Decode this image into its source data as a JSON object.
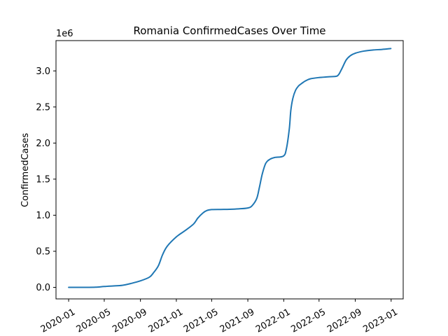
{
  "chart_data": {
    "type": "line",
    "title": "Romania  ConfirmedCases Over Time",
    "xlabel": "",
    "ylabel": "ConfirmedCases",
    "y_offset_label": "1e6",
    "y_scale": 1000000,
    "xlim": [
      "2019-11-19",
      "2023-02-11"
    ],
    "ylim": [
      -160000,
      3420000
    ],
    "x_ticks": [
      "2020-01-01",
      "2020-05-01",
      "2020-09-01",
      "2021-01-01",
      "2021-05-01",
      "2021-09-01",
      "2022-01-01",
      "2022-05-01",
      "2022-09-01",
      "2023-01-01"
    ],
    "x_tick_labels": [
      "2020-01",
      "2020-05",
      "2020-09",
      "2021-01",
      "2021-05",
      "2021-09",
      "2022-01",
      "2022-05",
      "2022-09",
      "2023-01"
    ],
    "y_ticks": [
      0,
      500000,
      1000000,
      1500000,
      2000000,
      2500000,
      3000000
    ],
    "y_tick_labels": [
      "0.0",
      "0.5",
      "1.0",
      "1.5",
      "2.0",
      "2.5",
      "3.0"
    ],
    "grid": false,
    "line_color": "#1f77b4",
    "series": [
      {
        "x": [
          "2020-01-01",
          "2020-03-01",
          "2020-04-01",
          "2020-05-01",
          "2020-06-01",
          "2020-07-01",
          "2020-08-01",
          "2020-09-01",
          "2020-10-01",
          "2020-10-15",
          "2020-11-01",
          "2020-11-15",
          "2020-12-01",
          "2021-01-01",
          "2021-02-01",
          "2021-03-01",
          "2021-03-15",
          "2021-04-01",
          "2021-04-15",
          "2021-05-01",
          "2021-06-01",
          "2021-07-01",
          "2021-08-01",
          "2021-09-01",
          "2021-09-15",
          "2021-10-01",
          "2021-10-10",
          "2021-10-20",
          "2021-11-01",
          "2021-11-15",
          "2021-12-01",
          "2021-12-31",
          "2022-01-10",
          "2022-01-20",
          "2022-01-25",
          "2022-02-01",
          "2022-02-10",
          "2022-02-20",
          "2022-03-01",
          "2022-03-15",
          "2022-04-01",
          "2022-05-01",
          "2022-06-01",
          "2022-07-01",
          "2022-07-15",
          "2022-08-01",
          "2022-08-15",
          "2022-09-01",
          "2022-10-01",
          "2022-11-01",
          "2022-12-01",
          "2022-12-31"
        ],
        "values": [
          0,
          0,
          2000,
          12000,
          20000,
          28000,
          55000,
          90000,
          140000,
          200000,
          300000,
          450000,
          570000,
          700000,
          790000,
          880000,
          960000,
          1030000,
          1065000,
          1078000,
          1080000,
          1082000,
          1088000,
          1100000,
          1130000,
          1230000,
          1380000,
          1570000,
          1720000,
          1775000,
          1800000,
          1820000,
          1920000,
          2200000,
          2450000,
          2620000,
          2730000,
          2790000,
          2820000,
          2860000,
          2890000,
          2908000,
          2918000,
          2928000,
          3010000,
          3150000,
          3210000,
          3245000,
          3275000,
          3290000,
          3298000,
          3310000
        ]
      }
    ]
  }
}
